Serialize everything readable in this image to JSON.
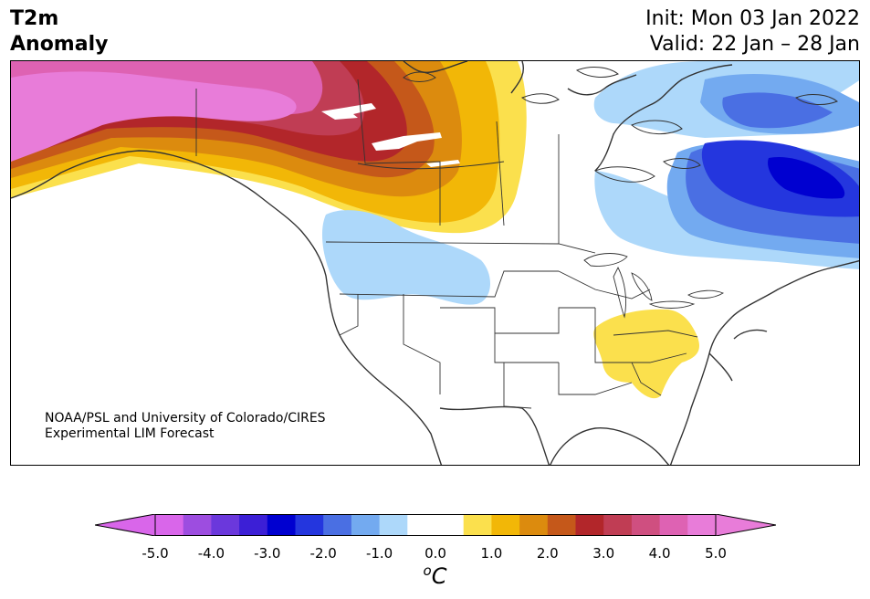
{
  "title": {
    "line1": "T2m",
    "line2": "Anomaly"
  },
  "header_right": {
    "init": "Init: Mon 03 Jan 2022",
    "valid": "Valid: 22 Jan – 28 Jan"
  },
  "credit": {
    "line1": "NOAA/PSL and University of Colorado/CIRES",
    "line2": "Experimental LIM Forecast"
  },
  "colorbar": {
    "colors": [
      "#d966ea",
      "#9d4de0",
      "#6b38dc",
      "#3c1fd6",
      "#0000d0",
      "#2436de",
      "#4a6fe3",
      "#73aaf0",
      "#add8fa",
      "#ffffff",
      "#ffffff",
      "#fbe04d",
      "#f2b707",
      "#dc8b0e",
      "#c5581a",
      "#b2262a",
      "#c03d54",
      "#cf4f80",
      "#de62b3",
      "#e87cd9"
    ],
    "under_color": "#d966ea",
    "over_color": "#e87cd9",
    "ticks": [
      "-5.0",
      "-4.0",
      "-3.0",
      "-2.0",
      "-1.0",
      "0.0",
      "1.0",
      "2.0",
      "3.0",
      "4.0",
      "5.0"
    ],
    "unit_base": "o",
    "unit_letter": "C"
  },
  "map_colors": {
    "pink": "#e87cd9",
    "magenta": "#de62b3",
    "crimson": "#c03d54",
    "red": "#b2262a",
    "rust": "#c5581a",
    "orange": "#dc8b0e",
    "gold": "#f2b707",
    "yellow": "#fbe04d",
    "lightblue": "#add8fa",
    "skyblue": "#73aaf0",
    "cornflower": "#4a6fe3",
    "blue": "#2436de",
    "navy": "#0000d0",
    "coast": "#333333"
  }
}
